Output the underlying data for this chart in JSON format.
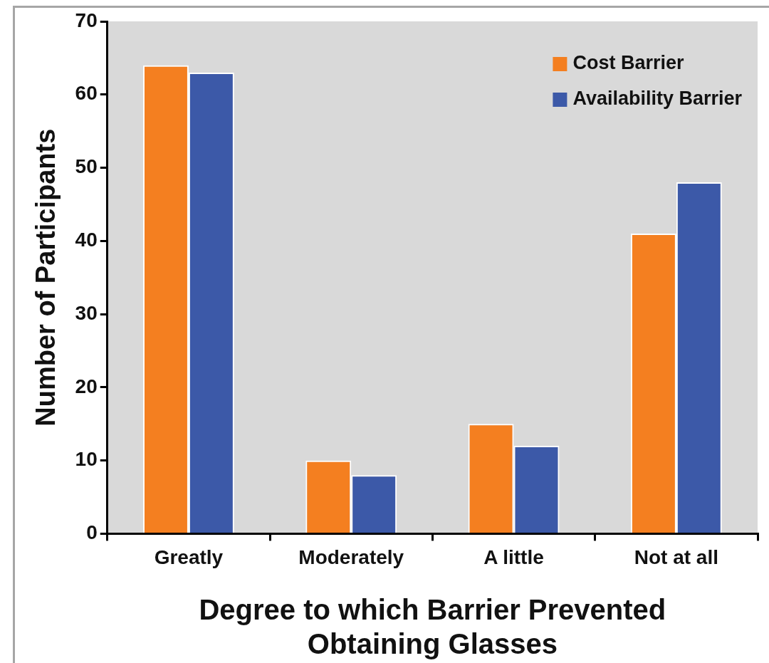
{
  "chart_data": {
    "type": "bar",
    "xlabel": "Degree to which Barrier Prevented Obtaining Glasses",
    "ylabel": "Number of Participants",
    "categories": [
      "Greatly",
      "Moderately",
      "A little",
      "Not at all"
    ],
    "series": [
      {
        "name": "Cost Barrier",
        "color": "#f47f20",
        "values": [
          64,
          10,
          15,
          41
        ]
      },
      {
        "name": "Availability Barrier",
        "color": "#3c59a8",
        "values": [
          63,
          8,
          12,
          48
        ]
      }
    ],
    "ylim": [
      0,
      70
    ],
    "yticks": [
      0,
      10,
      20,
      30,
      40,
      50,
      60,
      70
    ],
    "grid": false,
    "legend": "top right"
  }
}
